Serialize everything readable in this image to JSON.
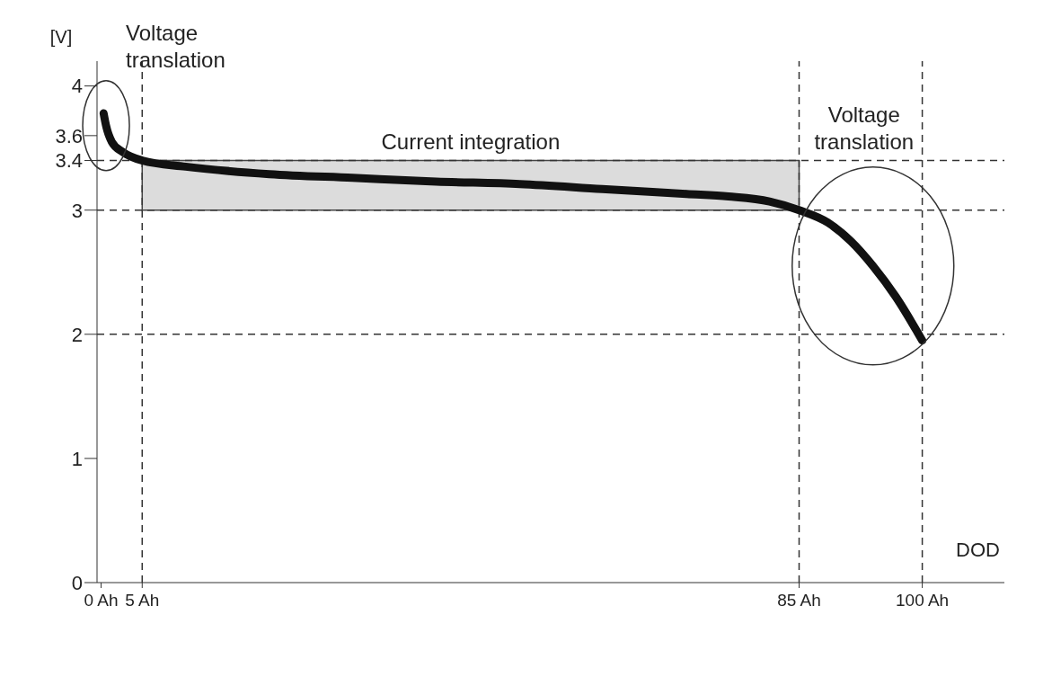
{
  "chart_data": {
    "type": "line",
    "xlabel": "DOD",
    "ylabel": "[V]",
    "x": [
      0.3,
      0.6,
      1.3,
      2.6,
      5,
      10.3,
      20.5,
      30.6,
      40.8,
      51,
      61,
      71.3,
      76.4,
      81.4,
      85,
      88.5,
      91.3,
      94,
      96.8,
      100
    ],
    "series": [
      {
        "color": "#111111",
        "values": [
          3.78,
          3.68,
          3.55,
          3.47,
          3.4,
          3.35,
          3.29,
          3.26,
          3.23,
          3.21,
          3.17,
          3.13,
          3.11,
          3.07,
          3.0,
          2.9,
          2.75,
          2.55,
          2.3,
          1.95
        ]
      }
    ],
    "xlim": [
      -0.5,
      110
    ],
    "xticks": [
      {
        "value": 0,
        "label": "0 Ah"
      },
      {
        "value": 5,
        "label": "5 Ah"
      },
      {
        "value": 85,
        "label": "85 Ah"
      },
      {
        "value": 100,
        "label": "100 Ah"
      }
    ],
    "ylim": [
      0,
      4.2
    ],
    "yticks": [
      0,
      1,
      2,
      3,
      3.4,
      3.6,
      4
    ],
    "grid": false,
    "legend": false,
    "marker": "none",
    "line_style": "solid",
    "bands": [
      {
        "axis": "y",
        "from": 3,
        "to": 3.4,
        "label": "Current integration",
        "color": "#dcdcdc"
      }
    ],
    "ref_lines": [
      {
        "axis": "x",
        "value": 5,
        "line_style": "dashed"
      },
      {
        "axis": "x",
        "value": 85,
        "line_style": "dashed"
      },
      {
        "axis": "x",
        "value": 100,
        "line_style": "dashed"
      },
      {
        "axis": "y",
        "value": 3,
        "line_style": "dashed"
      },
      {
        "axis": "y",
        "value": 3.4,
        "line_style": "dashed"
      },
      {
        "axis": "y",
        "value": 2,
        "line_style": "dashed"
      }
    ],
    "annotations": [
      "Voltage translation",
      "Voltage translation"
    ]
  }
}
